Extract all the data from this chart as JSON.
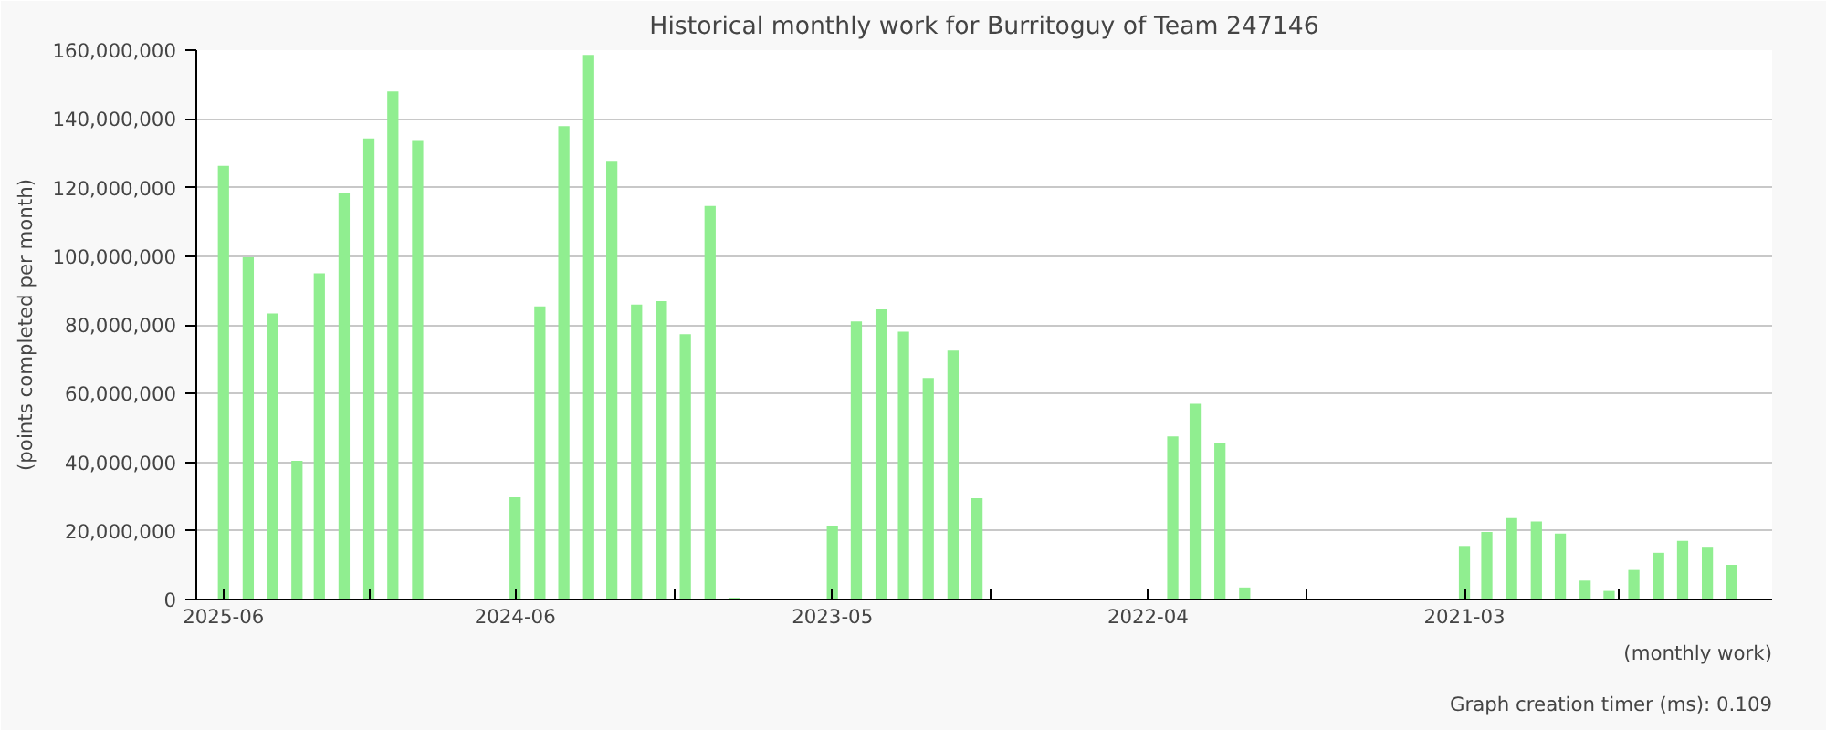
{
  "chart_data": {
    "type": "bar",
    "title": "Historical monthly work for Burritoguy of Team 247146",
    "xlabel": "(monthly work)",
    "ylabel": "(points completed per month)",
    "annotations": [
      "Graph creation timer (ms): 0.109"
    ],
    "x": [
      "2025-06",
      "2025-05",
      "2025-04",
      "2025-03",
      "2025-02",
      "2025-01",
      "2024-12",
      "2024-11",
      "2024-10",
      "2024-09",
      "2024-08",
      "2024-07",
      "2024-06",
      "2024-05",
      "2024-04",
      "2024-03",
      "2024-02",
      "2024-01",
      "2023-12",
      "2023-11",
      "2023-10",
      "2023-09",
      "2023-08",
      "2023-07",
      "2023-06",
      "2023-05",
      "2023-04",
      "2023-03",
      "2023-02",
      "2023-01",
      "2022-12",
      "2022-11",
      "2022-10",
      "2022-09",
      "2022-08",
      "2022-07",
      "2022-06",
      "2022-05",
      "2022-04",
      "2022-03",
      "2022-02",
      "2022-01",
      "2021-12",
      "2021-11",
      "2021-10",
      "2021-09",
      "2021-08",
      "2021-07",
      "2021-06",
      "2021-05",
      "2021-04",
      "2021-03",
      "2021-02",
      "2021-01",
      "2020-12",
      "2020-11",
      "2020-10",
      "2020-09",
      "2020-08",
      "2020-07",
      "2020-06",
      "2020-05",
      "2020-04"
    ],
    "values": [
      126300000,
      99700000,
      83300000,
      40400000,
      95000000,
      118400000,
      134300000,
      148000000,
      133800000,
      null,
      null,
      null,
      29800000,
      85400000,
      137900000,
      158600000,
      127800000,
      85900000,
      86900000,
      77300000,
      114600000,
      500000,
      null,
      null,
      null,
      21500000,
      81000000,
      84500000,
      78000000,
      64500000,
      72500000,
      29500000,
      null,
      null,
      null,
      null,
      null,
      null,
      null,
      47500000,
      57000000,
      45500000,
      3500000,
      null,
      null,
      null,
      null,
      null,
      null,
      null,
      null,
      15600000,
      19700000,
      23700000,
      22700000,
      19200000,
      5500000,
      2500000,
      8600000,
      13600000,
      17100000,
      15100000,
      10100000
    ],
    "color": "#90ee90",
    "xlim": [
      "2025-07-05",
      "2020-02-10"
    ],
    "xticks": [
      {
        "value": "2025-06",
        "label": "2025-06"
      },
      {
        "value": "2024-12-01",
        "label": null
      },
      {
        "value": "2024-06",
        "label": "2024-06"
      },
      {
        "value": "2023-11-15",
        "label": null
      },
      {
        "value": "2023-05",
        "label": "2023-05"
      },
      {
        "value": "2022-10-15",
        "label": null
      },
      {
        "value": "2022-04",
        "label": "2022-04"
      },
      {
        "value": "2021-09-15",
        "label": null
      },
      {
        "value": "2021-03",
        "label": "2021-03"
      },
      {
        "value": "2020-08-20",
        "label": null
      }
    ],
    "ylim": [
      0,
      160000000
    ],
    "yticks": [
      {
        "value": 0,
        "label": "0"
      },
      {
        "value": 20000000,
        "label": "20,000,000"
      },
      {
        "value": 40000000,
        "label": "40,000,000"
      },
      {
        "value": 60000000,
        "label": "60,000,000"
      },
      {
        "value": 80000000,
        "label": "80,000,000"
      },
      {
        "value": 100000000,
        "label": "100,000,000"
      },
      {
        "value": 120000000,
        "label": "120,000,000"
      },
      {
        "value": 140000000,
        "label": "140,000,000"
      },
      {
        "value": 160000000,
        "label": "160,000,000"
      }
    ],
    "grid": "y"
  }
}
